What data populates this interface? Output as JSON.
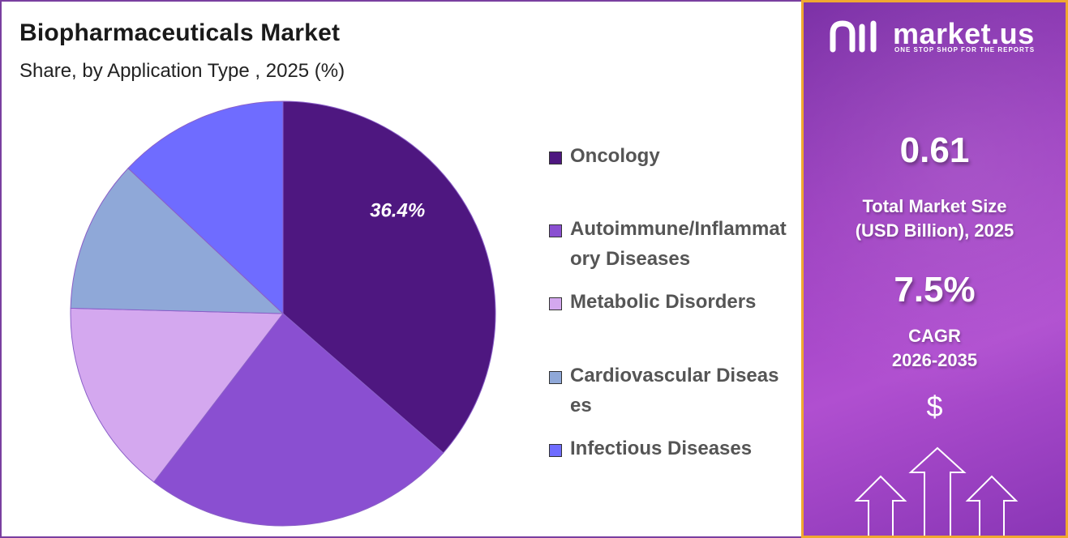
{
  "header": {
    "title": "Biopharmaceuticals Market",
    "subtitle": "Share, by Application Type , 2025 (%)"
  },
  "chart_data": {
    "type": "pie",
    "title": "Biopharmaceuticals Market",
    "subtitle": "Share, by Application Type , 2025 (%)",
    "slices": [
      {
        "label": "Oncology",
        "value": 36.4,
        "color": "#4e1780",
        "show_label": "36.4%"
      },
      {
        "label": "Autoimmune/Inflammatory Diseases",
        "value": 24.0,
        "color": "#8a4fd1"
      },
      {
        "label": "Metabolic Disorders",
        "value": 15.0,
        "color": "#d4a8ef"
      },
      {
        "label": "Cardiovascular Diseases",
        "value": 11.6,
        "color": "#8fa8d8"
      },
      {
        "label": "Infectious Diseases",
        "value": 13.0,
        "color": "#6f6cff"
      }
    ],
    "legend_position": "right"
  },
  "legend": {
    "items": [
      {
        "label": "Oncology",
        "color": "#4e1780"
      },
      {
        "label": "Autoimmune/Inflammatory Diseases",
        "color": "#8a4fd1"
      },
      {
        "label": "Metabolic Disorders",
        "color": "#d4a8ef"
      },
      {
        "label": "Cardiovascular Diseases",
        "color": "#8fa8d8"
      },
      {
        "label": "Infectious Diseases",
        "color": "#6f6cff"
      }
    ]
  },
  "side_panel": {
    "brand_name": "market.us",
    "brand_tagline": "ONE STOP SHOP FOR THE REPORTS",
    "market_size_value": "0.61",
    "market_size_label_line1": "Total Market Size",
    "market_size_label_line2": "(USD Billion), 2025",
    "cagr_value": "7.5%",
    "cagr_label_line1": "CAGR",
    "cagr_label_line2": "2026-2035",
    "dollar_symbol": "$",
    "accent_border_color": "#f0a830"
  }
}
